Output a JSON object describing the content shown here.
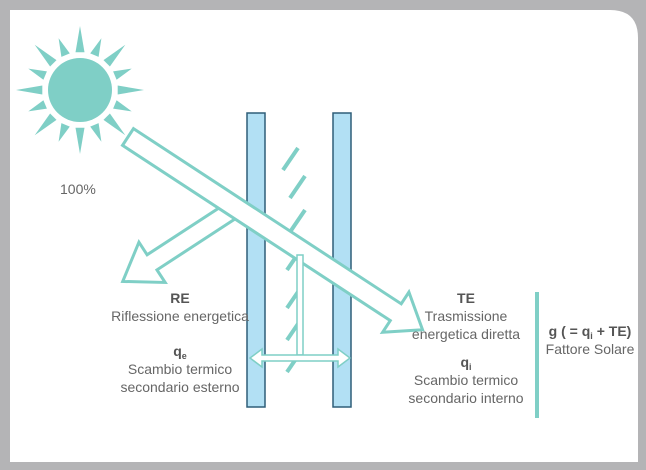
{
  "labels": {
    "incident": "100%",
    "reflection": {
      "code": "RE",
      "text": "Riflessione energetica"
    },
    "external_exchange": {
      "symbol": "q",
      "subscript": "e",
      "lines": [
        "Scambio termico",
        "secondario esterno"
      ]
    },
    "transmission": {
      "code": "TE",
      "lines": [
        "Trasmissione",
        "energetica diretta"
      ]
    },
    "internal_exchange": {
      "symbol": "q",
      "subscript": "i",
      "lines": [
        "Scambio termico",
        "secondario interno"
      ]
    },
    "solar_factor": {
      "parts": [
        "g ( = q",
        "i",
        " + TE)"
      ],
      "text": "Fattore Solare"
    }
  }
}
